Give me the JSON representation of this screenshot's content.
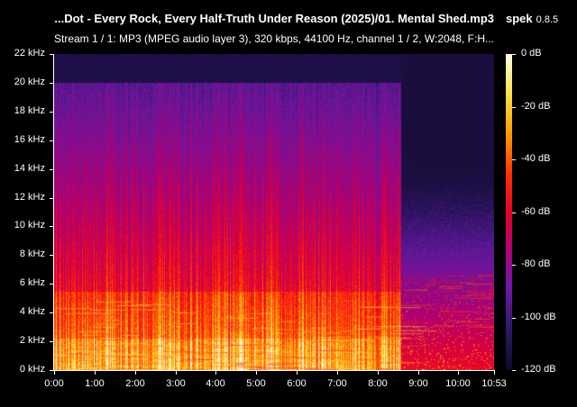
{
  "window": {
    "file_title": "...Dot - Every Rock, Every Half-Truth Under Reason (2025)/01. Mental Shed.mp3",
    "app_name": "spek",
    "app_version": "0.8.5",
    "stream_info": "Stream 1 / 1: MP3 (MPEG audio layer 3), 320 kbps, 44100 Hz, channel 1 / 2, W:2048, F:H..."
  },
  "axes": {
    "frequency_labels": [
      "22 kHz",
      "20 kHz",
      "18 kHz",
      "16 kHz",
      "14 kHz",
      "12 kHz",
      "10 kHz",
      "8 kHz",
      "6 kHz",
      "4 kHz",
      "2 kHz",
      "0 kHz"
    ],
    "time_labels": [
      "0:00",
      "1:00",
      "2:00",
      "3:00",
      "4:00",
      "5:00",
      "6:00",
      "7:00",
      "8:00",
      "9:00",
      "10:00",
      "10:53"
    ],
    "time_seconds": [
      0,
      60,
      120,
      180,
      240,
      300,
      360,
      420,
      480,
      540,
      600,
      653
    ],
    "duration_seconds": 653,
    "max_khz": 22
  },
  "colorbar": {
    "labels": [
      "0 dB",
      "-20 dB",
      "-40 dB",
      "-60 dB",
      "-80 dB",
      "-100 dB",
      "-120 dB"
    ],
    "db_values": [
      0,
      -20,
      -40,
      -60,
      -80,
      -100,
      -120
    ]
  },
  "spectrogram": {
    "cutoff_khz": 20,
    "cutoff_end_seconds": 515
  }
}
